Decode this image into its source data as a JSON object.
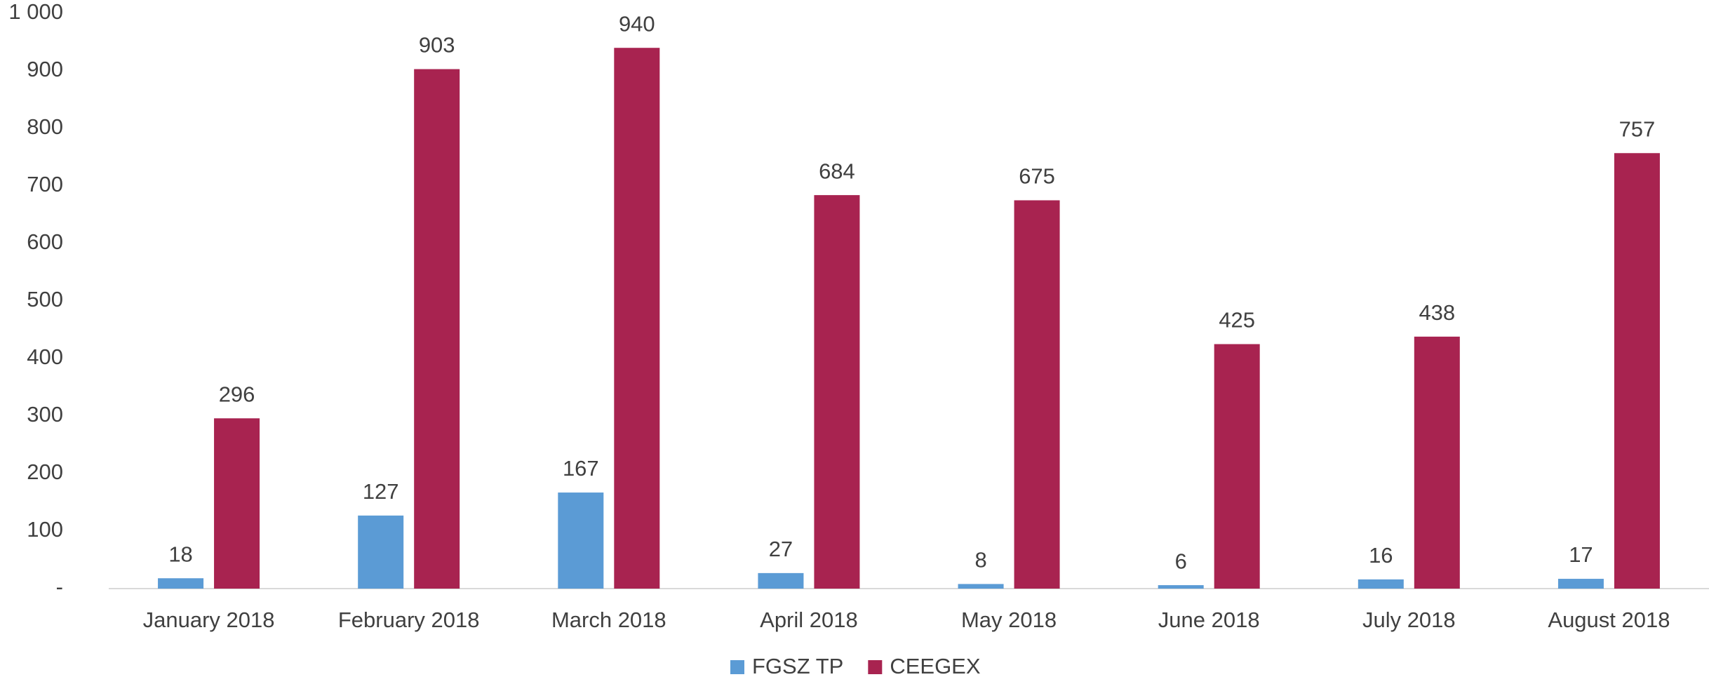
{
  "chart_data": {
    "type": "bar",
    "categories": [
      "January 2018",
      "February 2018",
      "March 2018",
      "April 2018",
      "May 2018",
      "June 2018",
      "July 2018",
      "August 2018"
    ],
    "series": [
      {
        "name": "FGSZ TP",
        "color": "#5b9bd5",
        "values": [
          18,
          127,
          167,
          27,
          8,
          6,
          16,
          17
        ]
      },
      {
        "name": "CEEGEX",
        "color": "#a82350",
        "values": [
          296,
          903,
          940,
          684,
          675,
          425,
          438,
          757
        ]
      }
    ],
    "ylim": [
      0,
      1000
    ],
    "yticks": [
      {
        "value": 0,
        "label": "-"
      },
      100,
      200,
      300,
      400,
      500,
      600,
      700,
      800,
      900,
      {
        "value": 1000,
        "label": "1 000"
      }
    ],
    "grid": false,
    "legend": "bottom"
  }
}
